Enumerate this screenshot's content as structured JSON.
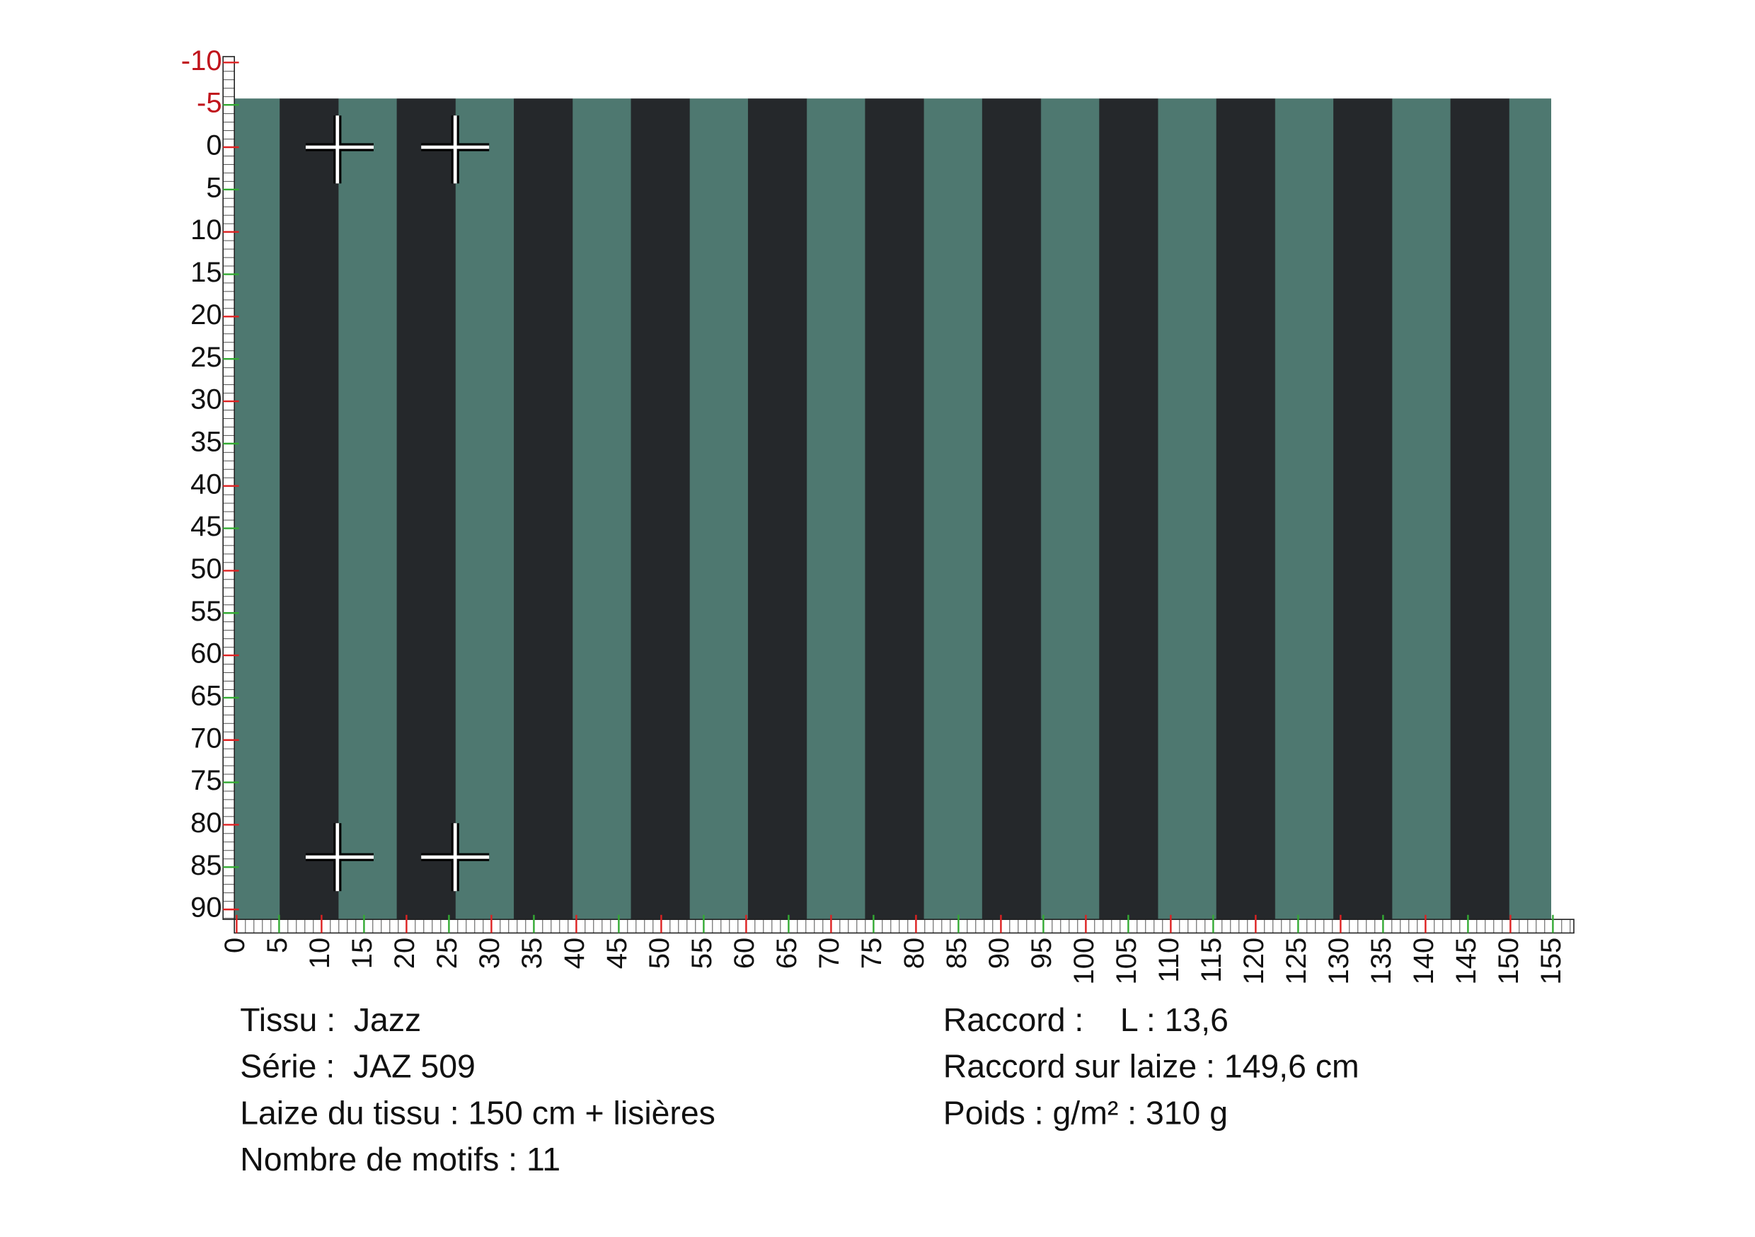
{
  "ruler_left": {
    "ticks": [
      -10,
      -5,
      0,
      5,
      10,
      15,
      20,
      25,
      30,
      35,
      40,
      45,
      50,
      55,
      60,
      65,
      70,
      75,
      80,
      85,
      90
    ]
  },
  "ruler_bottom": {
    "ticks": [
      0,
      5,
      10,
      15,
      20,
      25,
      30,
      35,
      40,
      45,
      50,
      55,
      60,
      65,
      70,
      75,
      80,
      85,
      90,
      95,
      100,
      105,
      110,
      115,
      120,
      125,
      130,
      135,
      140,
      145,
      150,
      155
    ]
  },
  "info_left": [
    "Tissu :  Jazz",
    "Série :  JAZ 509",
    "Laize du tissu : 150 cm + lisières",
    "Nombre de motifs : 11"
  ],
  "info_right": [
    "Raccord :    L : 13,6",
    "Raccord sur laize : 149,6 cm",
    "Poids : g/m² : 310 g"
  ]
}
